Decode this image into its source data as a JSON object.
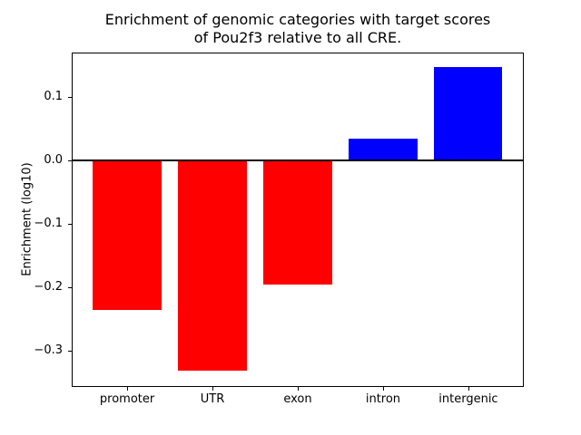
{
  "chart_data": {
    "type": "bar",
    "title": "Enrichment of genomic categories with target scores\nof Pou2f3 relative to all CRE.",
    "xlabel": "",
    "ylabel": "Enrichment (log10)",
    "categories": [
      "promoter",
      "UTR",
      "exon",
      "intron",
      "intergenic"
    ],
    "values": [
      -0.236,
      -0.331,
      -0.196,
      0.034,
      0.147
    ],
    "bar_colors": [
      "#ff0000",
      "#ff0000",
      "#ff0000",
      "#0000ff",
      "#0000ff"
    ],
    "negative_color": "#ff0000",
    "positive_color": "#0000ff",
    "yticks": [
      0.1,
      0.0,
      -0.1,
      -0.2,
      -0.3
    ],
    "ytick_labels": [
      "0.1",
      "0.0",
      "−0.1",
      "−0.2",
      "−0.3"
    ],
    "ylim": [
      -0.357,
      0.17
    ],
    "xlim": [
      -0.65,
      4.65
    ],
    "bar_width": 0.8,
    "zero_line": true,
    "grid": false,
    "legend": null,
    "frame_color": "#000000",
    "background_color": "#ffffff"
  }
}
